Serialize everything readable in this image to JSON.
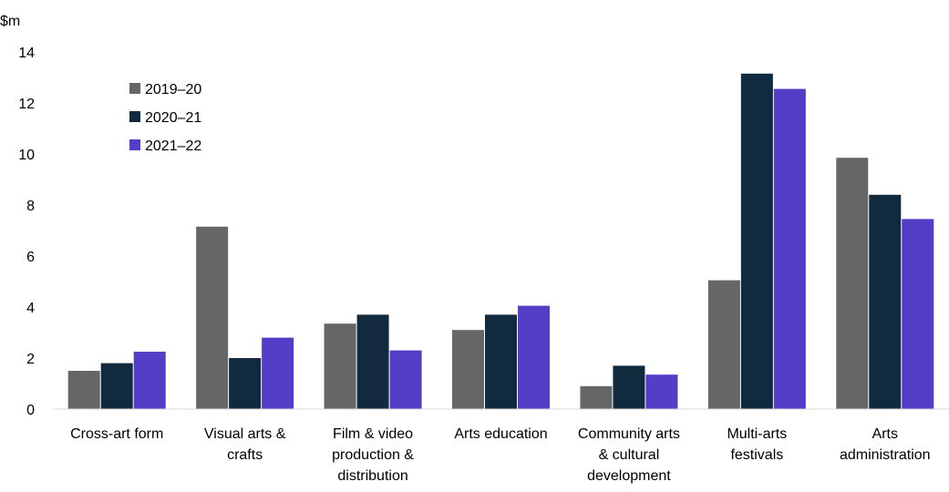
{
  "chart_data": {
    "type": "bar",
    "y_unit": "$m",
    "categories": [
      [
        "Cross-art form"
      ],
      [
        "Visual arts &",
        "crafts"
      ],
      [
        "Film & video",
        "production &",
        "distribution"
      ],
      [
        "Arts education"
      ],
      [
        "Community arts",
        "& cultural",
        "development"
      ],
      [
        "Multi-arts",
        "festivals"
      ],
      [
        "Arts",
        "administration"
      ]
    ],
    "series": [
      {
        "name": "2019–20",
        "color": "#666666",
        "values": [
          1.5,
          7.15,
          3.35,
          3.1,
          0.9,
          5.05,
          9.85
        ]
      },
      {
        "name": "2020–21",
        "color": "#112a3d",
        "values": [
          1.8,
          2.0,
          3.7,
          3.7,
          1.7,
          13.15,
          8.4
        ]
      },
      {
        "name": "2021–22",
        "color": "#543dc7",
        "values": [
          2.25,
          2.8,
          2.3,
          4.05,
          1.35,
          12.55,
          7.45
        ]
      }
    ],
    "yticks": [
      "0",
      "2",
      "4",
      "6",
      "8",
      "10",
      "12",
      "14"
    ],
    "ylim": [
      0,
      14
    ],
    "grid": false,
    "legend_position": "top-left"
  }
}
